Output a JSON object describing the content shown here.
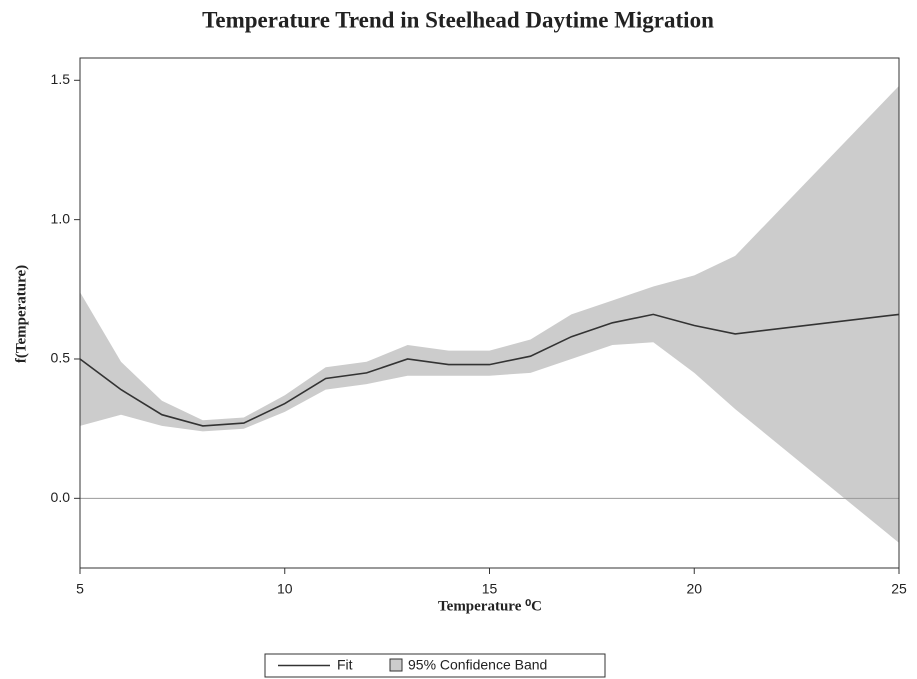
{
  "chart_data": {
    "type": "line",
    "title": "Temperature Trend in Steelhead Daytime Migration",
    "x_label": "Temperature ⁰C",
    "y_label": "f(Temperature)",
    "x": [
      5,
      6,
      7,
      8,
      9,
      10,
      11,
      12,
      13,
      14,
      15,
      16,
      17,
      18,
      19,
      20,
      21,
      25
    ],
    "series": [
      {
        "name": "Fit",
        "color": "#333333",
        "values": [
          0.5,
          0.39,
          0.3,
          0.26,
          0.27,
          0.34,
          0.43,
          0.45,
          0.5,
          0.48,
          0.48,
          0.51,
          0.58,
          0.63,
          0.66,
          0.62,
          0.59,
          0.66
        ]
      }
    ],
    "band": {
      "name": "95% Confidence Band",
      "color": "#cccccc",
      "lower": [
        0.26,
        0.3,
        0.26,
        0.24,
        0.25,
        0.31,
        0.39,
        0.41,
        0.44,
        0.44,
        0.44,
        0.45,
        0.5,
        0.55,
        0.56,
        0.45,
        0.32,
        -0.16
      ],
      "upper": [
        0.74,
        0.49,
        0.35,
        0.28,
        0.29,
        0.37,
        0.47,
        0.49,
        0.55,
        0.53,
        0.53,
        0.57,
        0.66,
        0.71,
        0.76,
        0.8,
        0.87,
        1.48
      ]
    },
    "reference_line": 0,
    "xlim": [
      5,
      25
    ],
    "xticks": [
      5,
      10,
      15,
      20,
      25
    ],
    "ylim": [
      -0.25,
      1.58
    ],
    "yticks": [
      {
        "value": 0,
        "label": "0.0"
      },
      {
        "value": 0.5,
        "label": "0.5"
      },
      {
        "value": 1,
        "label": "1.0"
      },
      {
        "value": 1.5,
        "label": "1.5"
      }
    ]
  }
}
